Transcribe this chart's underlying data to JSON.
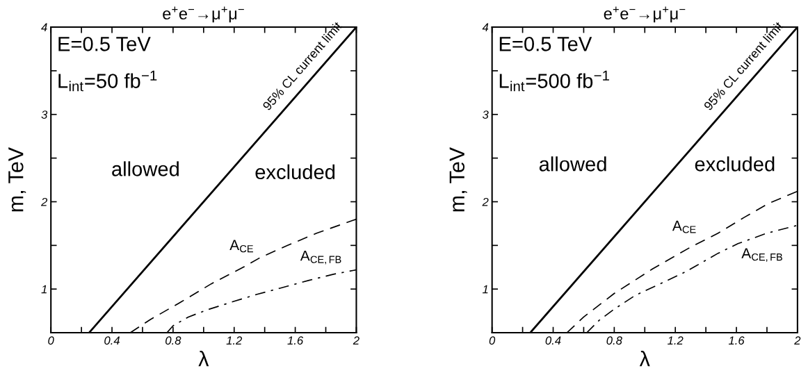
{
  "chart_data": [
    {
      "type": "line",
      "title": "e$^{+}$e$^{−}$→μ$^{+}$μ$^{−}$",
      "xlabel": "λ",
      "ylabel": "m, TeV",
      "xlim": [
        0,
        2
      ],
      "ylim": [
        0.5,
        4
      ],
      "xticks": [
        0,
        {
          "value": 0.2,
          "label": null
        },
        0.4,
        {
          "value": 0.6,
          "label": null
        },
        0.8,
        {
          "value": 1.0,
          "label": null
        },
        1.2,
        {
          "value": 1.4,
          "label": null
        },
        1.6,
        {
          "value": 1.8,
          "label": null
        },
        2
      ],
      "yticks": [
        {
          "value": 0.5,
          "label": null
        },
        1,
        {
          "value": 1.5,
          "label": null
        },
        2,
        {
          "value": 2.5,
          "label": null
        },
        3,
        {
          "value": 3.5,
          "label": null
        },
        4
      ],
      "grid": false,
      "series": [
        {
          "color": "#000000",
          "line_style": "solid",
          "x": [
            0.25,
            2
          ],
          "values": [
            0.5,
            4
          ]
        },
        {
          "color": "#000000",
          "line_style": "dashed",
          "x": [
            0.52,
            0.65,
            0.85,
            1.05,
            1.27,
            1.37,
            1.55,
            1.74,
            2
          ],
          "values": [
            0.5,
            0.65,
            0.85,
            1.06,
            1.26,
            1.36,
            1.5,
            1.64,
            1.8
          ]
        },
        {
          "color": "#000000",
          "line_style": "dashdot",
          "x": [
            0.76,
            0.8,
            0.9,
            1.02,
            1.2,
            1.35,
            1.5,
            1.69,
            1.85,
            2
          ],
          "values": [
            0.5,
            0.58,
            0.68,
            0.76,
            0.86,
            0.94,
            1.01,
            1.1,
            1.17,
            1.22
          ]
        }
      ],
      "annotations": [
        "allowed",
        "excluded",
        "E=0.5 TeV",
        "L$_{int}$=50 fb$^{−1}$",
        "95% CL current limit",
        "A$_{CE}$",
        "A$_{CE,FB}$"
      ]
    },
    {
      "type": "line",
      "title": "e$^{+}$e$^{−}$→μ$^{+}$μ$^{−}$",
      "xlabel": "λ",
      "ylabel": "m, TeV",
      "xlim": [
        0,
        2
      ],
      "ylim": [
        0.5,
        4
      ],
      "xticks": [
        0,
        {
          "value": 0.2,
          "label": null
        },
        0.4,
        {
          "value": 0.6,
          "label": null
        },
        0.8,
        {
          "value": 1.0,
          "label": null
        },
        1.2,
        {
          "value": 1.4,
          "label": null
        },
        1.6,
        {
          "value": 1.8,
          "label": null
        },
        2
      ],
      "yticks": [
        {
          "value": 0.5,
          "label": null
        },
        1,
        {
          "value": 1.5,
          "label": null
        },
        2,
        {
          "value": 2.5,
          "label": null
        },
        3,
        {
          "value": 3.5,
          "label": null
        },
        4
      ],
      "grid": false,
      "series": [
        {
          "color": "#000000",
          "line_style": "solid",
          "x": [
            0.25,
            2
          ],
          "values": [
            0.5,
            4
          ]
        },
        {
          "color": "#000000",
          "line_style": "dashed",
          "x": [
            0.49,
            0.6,
            0.8,
            1.05,
            1.12,
            1.3,
            1.48,
            1.65,
            1.81,
            2
          ],
          "values": [
            0.5,
            0.68,
            0.95,
            1.23,
            1.3,
            1.48,
            1.64,
            1.82,
            1.98,
            2.12
          ]
        },
        {
          "color": "#000000",
          "line_style": "dashdot",
          "x": [
            0.62,
            0.7,
            0.8,
            0.94,
            1.1,
            1.27,
            1.34,
            1.48,
            1.61,
            1.8,
            2
          ],
          "values": [
            0.5,
            0.64,
            0.77,
            0.93,
            1.06,
            1.2,
            1.27,
            1.41,
            1.52,
            1.64,
            1.73
          ]
        }
      ],
      "annotations": [
        "allowed",
        "excluded",
        "E=0.5 TeV",
        "L$_{int}$=500 fb$^{−1}$",
        "95% CL current limit",
        "A$_{CE}$",
        "A$_{CE,FB}$"
      ]
    }
  ]
}
